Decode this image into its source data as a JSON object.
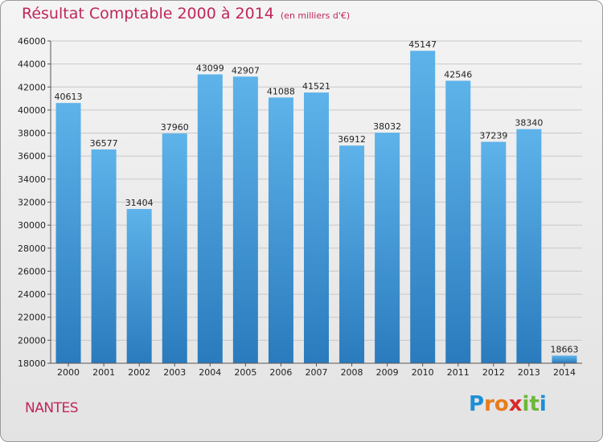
{
  "chart_data": {
    "type": "bar",
    "title": "Résultat Comptable 2000 à 2014",
    "subtitle": "(en milliers d'€)",
    "xlabel": "",
    "ylabel": "",
    "categories": [
      "2000",
      "2001",
      "2002",
      "2003",
      "2004",
      "2005",
      "2006",
      "2007",
      "2008",
      "2009",
      "2010",
      "2011",
      "2012",
      "2013",
      "2014"
    ],
    "values": [
      40613,
      36577,
      31404,
      37960,
      43099,
      42907,
      41088,
      41521,
      36912,
      38032,
      45147,
      42546,
      37239,
      38340,
      18663
    ],
    "ylim": [
      18000,
      46000
    ],
    "yticks": [
      18000,
      20000,
      22000,
      24000,
      26000,
      28000,
      30000,
      32000,
      34000,
      36000,
      38000,
      40000,
      42000,
      44000,
      46000
    ],
    "grid": true,
    "colors": {
      "bar_top": "#5eb3ea",
      "bar_bottom": "#2a7bbd",
      "title": "#c0265c"
    }
  },
  "footer": {
    "city": "NANTES"
  },
  "logo": {
    "letters": [
      "P",
      "r",
      "o",
      "x",
      "i",
      "t",
      "i"
    ],
    "colors": [
      "#1c8fd6",
      "#e97c1c",
      "#e97c1c",
      "#d62a2a",
      "#6bb83a",
      "#6bb83a",
      "#1c8fd6"
    ]
  }
}
